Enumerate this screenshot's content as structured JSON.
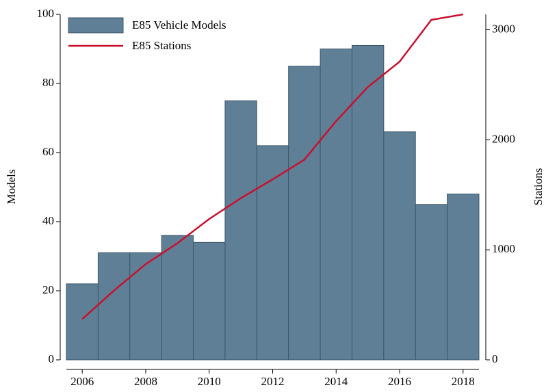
{
  "chart_data": {
    "type": "bar_line",
    "x": [
      2006,
      2007,
      2008,
      2009,
      2010,
      2011,
      2012,
      2013,
      2014,
      2015,
      2016,
      2017,
      2018
    ],
    "series": [
      {
        "name": "E85 Vehicle Models",
        "type": "bar",
        "color": "#5f7f96",
        "values": [
          22,
          31,
          31,
          36,
          34,
          75,
          62,
          85,
          90,
          91,
          66,
          45,
          48
        ]
      },
      {
        "name": "E85 Stations",
        "type": "line",
        "axis": "y2",
        "color": "#c8102e",
        "values": [
          370,
          630,
          870,
          1060,
          1280,
          1470,
          1640,
          1820,
          2170,
          2480,
          2710,
          3090,
          3140
        ]
      }
    ],
    "ylabel": "Models",
    "y2label": "Stations",
    "xlim": [
      2005.5,
      2018.5
    ],
    "xticks": [
      2006,
      2008,
      2010,
      2012,
      2014,
      2016,
      2018
    ],
    "ylim": [
      0,
      100
    ],
    "yticks": [
      0,
      20,
      40,
      60,
      80,
      100
    ],
    "y2lim": [
      0,
      3140
    ],
    "y2ticks": [
      0,
      1000,
      2000,
      3000
    ],
    "legend": "top-left"
  }
}
